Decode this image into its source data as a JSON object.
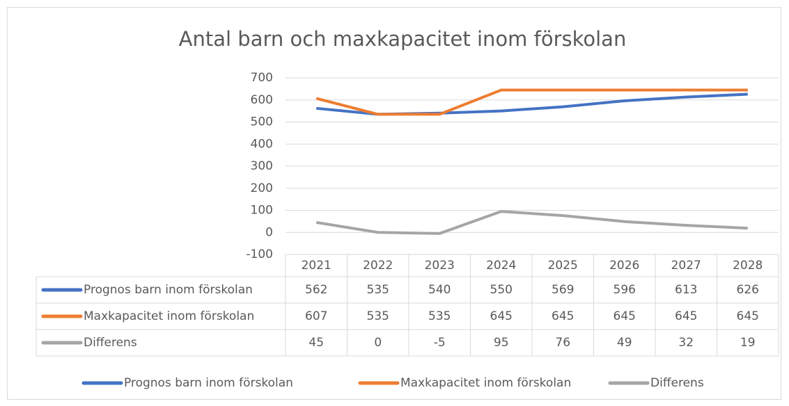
{
  "chart_data": {
    "type": "line",
    "title": "Antal barn och maxkapacitet inom förskolan",
    "categories": [
      "2021",
      "2022",
      "2023",
      "2024",
      "2025",
      "2026",
      "2027",
      "2028"
    ],
    "series": [
      {
        "name": "Prognos barn inom förskolan",
        "color": "#4472c4",
        "values": [
          562,
          535,
          540,
          550,
          569,
          596,
          613,
          626
        ]
      },
      {
        "name": "Maxkapacitet inom förskolan",
        "color": "#ed7d31",
        "values": [
          607,
          535,
          535,
          645,
          645,
          645,
          645,
          645
        ]
      },
      {
        "name": "Differens",
        "color": "#a5a5a5",
        "values": [
          45,
          0,
          -5,
          95,
          76,
          49,
          32,
          19
        ]
      }
    ],
    "ylim": [
      -100,
      700
    ],
    "yticks": [
      -100,
      0,
      100,
      200,
      300,
      400,
      500,
      600,
      700
    ],
    "grid": true,
    "data_table": true,
    "legend": "bottom"
  }
}
